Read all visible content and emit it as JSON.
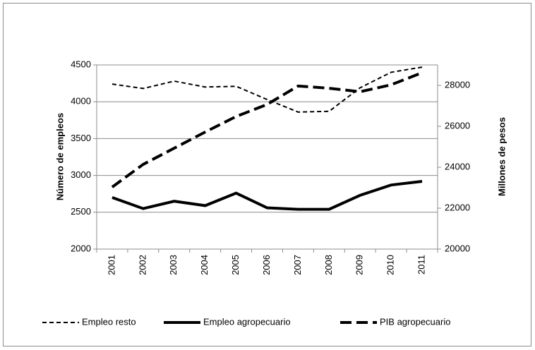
{
  "chart_data": {
    "type": "line",
    "categories": [
      "2001",
      "2002",
      "2003",
      "2004",
      "2005",
      "2006",
      "2007",
      "2008",
      "2009",
      "2010",
      "2011"
    ],
    "ylabel": "Número de empleos",
    "y2label": "Millones de pesos",
    "ylim": [
      2000,
      4500
    ],
    "yticks": [
      2000,
      2500,
      3000,
      3500,
      4000,
      4500
    ],
    "y2lim": [
      20000,
      29000
    ],
    "y2ticks": [
      20000,
      22000,
      24000,
      26000,
      28000
    ],
    "grid": true,
    "legend": "bottom",
    "series": [
      {
        "name": "Empleo resto",
        "color": "#000000",
        "dash": "short",
        "values": [
          4240,
          4180,
          4280,
          4200,
          4210,
          4030,
          3860,
          3870,
          4190,
          4400,
          4470
        ]
      },
      {
        "name": "Empleo agropecuario",
        "color": "#000000",
        "dash": "solid",
        "values": [
          2700,
          2550,
          2650,
          2590,
          2760,
          2560,
          2540,
          2540,
          2730,
          2870,
          2920
        ]
      },
      {
        "name": "PIB agropecuario",
        "color": "#000000",
        "dash": "long",
        "axis": "y2",
        "values": [
          23030,
          24140,
          24930,
          25720,
          26480,
          27070,
          27970,
          27860,
          27690,
          28030,
          28620
        ]
      }
    ]
  }
}
